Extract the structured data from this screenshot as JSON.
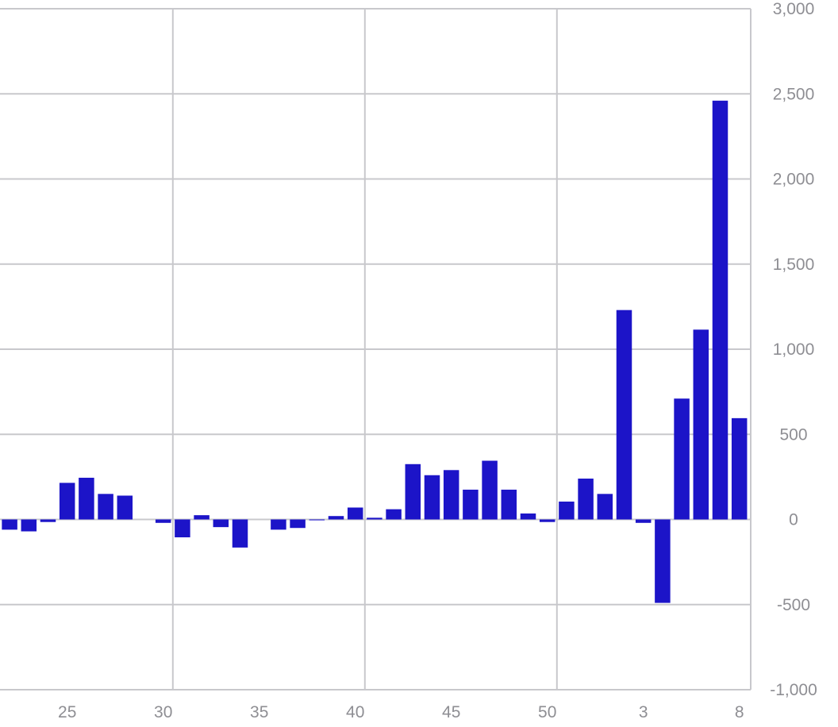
{
  "chart_data": {
    "type": "bar",
    "title": "",
    "xlabel": "",
    "ylabel": "",
    "ylim": [
      -1000,
      3000
    ],
    "grid": true,
    "y_axis_side": "right",
    "bar_color": "#1c14c8",
    "y_ticks": [
      {
        "value": 3000,
        "label": "3,000"
      },
      {
        "value": 2500,
        "label": "2,500"
      },
      {
        "value": 2000,
        "label": "2,000"
      },
      {
        "value": 1500,
        "label": "1,500"
      },
      {
        "value": 1000,
        "label": "1,000"
      },
      {
        "value": 500,
        "label": "500"
      },
      {
        "value": 0,
        "label": "0"
      },
      {
        "value": -500,
        "label": "-500"
      },
      {
        "value": -1000,
        "label": "-1,000"
      }
    ],
    "x_ticks": [
      {
        "index": 3,
        "label": "25"
      },
      {
        "index": 8,
        "label": "30"
      },
      {
        "index": 13,
        "label": "35"
      },
      {
        "index": 18,
        "label": "40"
      },
      {
        "index": 23,
        "label": "45"
      },
      {
        "index": 28,
        "label": "50"
      },
      {
        "index": 33,
        "label": "3"
      },
      {
        "index": 38,
        "label": "8"
      }
    ],
    "vertical_grid_boundaries": [
      9,
      19,
      29
    ],
    "values": [
      -60,
      -70,
      -15,
      215,
      245,
      150,
      140,
      0,
      -20,
      -105,
      25,
      -45,
      -165,
      0,
      -60,
      -50,
      -5,
      20,
      70,
      10,
      60,
      325,
      260,
      290,
      175,
      345,
      175,
      35,
      -15,
      105,
      240,
      150,
      1230,
      -20,
      -490,
      710,
      1115,
      2460,
      595
    ]
  }
}
